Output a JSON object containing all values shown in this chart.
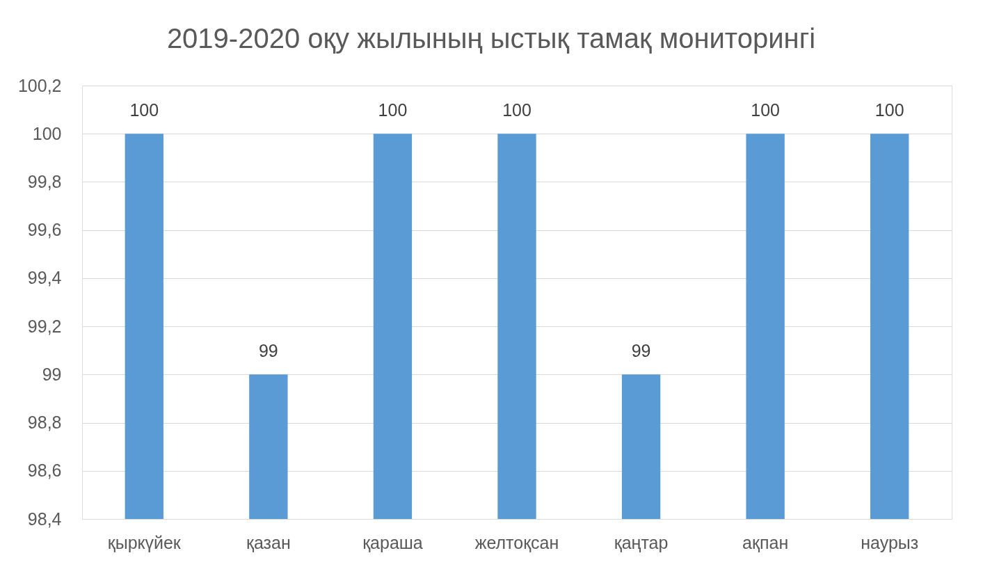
{
  "chart_data": {
    "type": "bar",
    "title": "2019-2020 оқу жылының ыстық тамақ мониторингі",
    "categories": [
      "қыркүйек",
      "қазан",
      "қараша",
      "желтоқсан",
      "қаңтар",
      "ақпан",
      "наурыз"
    ],
    "values": [
      100,
      99,
      100,
      100,
      99,
      100,
      100
    ],
    "color": "#5b9bd5",
    "ylim": [
      98.4,
      100.2
    ],
    "yticks": [
      {
        "value": 98.4,
        "label": "98,4"
      },
      {
        "value": 98.6,
        "label": "98,6"
      },
      {
        "value": 98.8,
        "label": "98,8"
      },
      99,
      {
        "value": 99.2,
        "label": "99,2"
      },
      {
        "value": 99.4,
        "label": "99,4"
      },
      {
        "value": 99.6,
        "label": "99,6"
      },
      {
        "value": 99.8,
        "label": "99,8"
      },
      100,
      {
        "value": 100.2,
        "label": "100,2"
      }
    ],
    "grid": "y",
    "data_labels": true
  }
}
